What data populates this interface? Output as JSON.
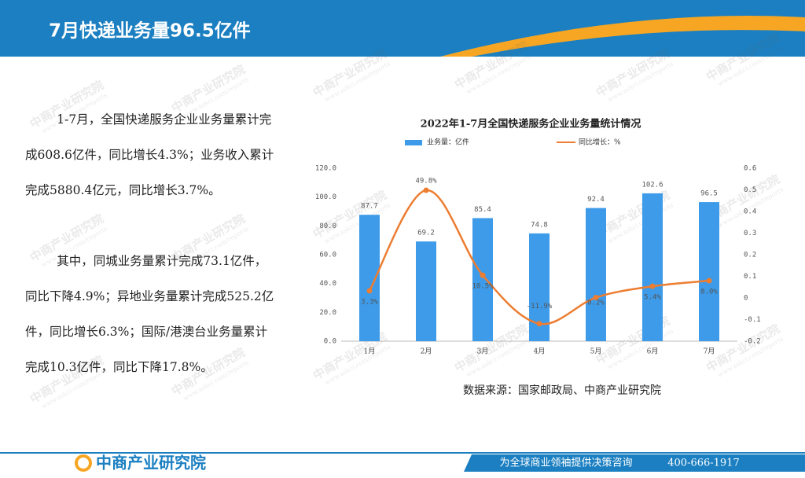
{
  "header": {
    "title": "7月快递业务量96.5亿件"
  },
  "body": {
    "paragraphs": [
      "1-7月，全国快递服务企业业务量累计完成608.6亿件，同比增长4.3%；业务收入累计完成5880.4亿元，同比增长3.7%。",
      "其中，同城业务量累计完成73.1亿件，同比下降4.9%；异地业务量累计完成525.2亿件，同比增长6.3%；国际/港澳台业务量累计完成10.3亿件，同比下降17.8%。"
    ]
  },
  "chart_data": {
    "type": "bar",
    "title": "2022年1-7月全国快递服务企业业务量统计情况",
    "categories": [
      "1月",
      "2月",
      "3月",
      "4月",
      "5月",
      "6月",
      "7月"
    ],
    "series": [
      {
        "name": "业务量：亿件",
        "color": "#3d9be9",
        "values": [
          87.7,
          69.2,
          85.4,
          74.8,
          92.4,
          102.6,
          96.5
        ]
      },
      {
        "name": "同比增长：%",
        "color": "#ed7d31",
        "type": "line",
        "axis": "y2",
        "values": [
          0.033,
          0.498,
          0.105,
          -0.119,
          0.002,
          0.054,
          0.08
        ],
        "value_labels": [
          "3.3%",
          "49.8%",
          "10.5%",
          "-11.9%",
          "0.2%",
          "5.4%",
          "8.0%"
        ]
      }
    ],
    "ylim": [
      0,
      120
    ],
    "yticks": [
      {
        "value": 0,
        "label": "0.0"
      },
      {
        "value": 20,
        "label": "20.0"
      },
      {
        "value": 40,
        "label": "40.0"
      },
      {
        "value": 60,
        "label": "60.0"
      },
      {
        "value": 80,
        "label": "80.0"
      },
      {
        "value": 100,
        "label": "100.0"
      },
      {
        "value": 120,
        "label": "120.0"
      }
    ],
    "y2lim": [
      -0.2,
      0.6
    ],
    "y2ticks": [
      -0.2,
      -0.1,
      0,
      0.1,
      0.2,
      0.3,
      0.4,
      0.5,
      0.6
    ],
    "legend": "top"
  },
  "source": "数据来源：国家邮政局、中商产业研究院",
  "watermark": {
    "name": "中商产业研究院",
    "url": "www.askci.com/reports"
  },
  "footer": {
    "logo": "中商产业研究院",
    "slogan": "为全球商业领袖提供决策咨询",
    "phone": "400-666-1917"
  }
}
